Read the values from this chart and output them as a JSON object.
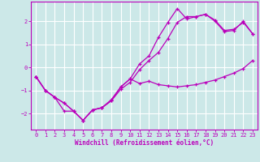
{
  "xlabel": "Windchill (Refroidissement éolien,°C)",
  "bg_color": "#cce8e8",
  "grid_color": "#ffffff",
  "line_color": "#bb00bb",
  "xlim": [
    -0.5,
    23.5
  ],
  "ylim": [
    -2.7,
    2.85
  ],
  "xticks": [
    0,
    1,
    2,
    3,
    4,
    5,
    6,
    7,
    8,
    9,
    10,
    11,
    12,
    13,
    14,
    15,
    16,
    17,
    18,
    19,
    20,
    21,
    22,
    23
  ],
  "yticks": [
    -2,
    -1,
    0,
    1,
    2
  ],
  "line1_x": [
    0,
    1,
    2,
    3,
    4,
    5,
    6,
    7,
    8,
    9,
    10,
    11,
    12,
    13,
    14,
    15,
    16,
    17,
    18,
    19,
    20,
    21,
    22,
    23
  ],
  "line1_y": [
    -0.4,
    -1.0,
    -1.3,
    -1.9,
    -1.9,
    -2.3,
    -1.85,
    -1.75,
    -1.45,
    -0.85,
    -0.5,
    0.15,
    0.5,
    1.3,
    1.95,
    2.55,
    2.1,
    2.2,
    2.3,
    2.0,
    1.55,
    1.6,
    2.0,
    1.45
  ],
  "line2_x": [
    0,
    1,
    2,
    3,
    4,
    5,
    6,
    7,
    8,
    9,
    10,
    11,
    12,
    13,
    14,
    15,
    16,
    17,
    18,
    19,
    20,
    21,
    22,
    23
  ],
  "line2_y": [
    -0.4,
    -1.0,
    -1.3,
    -1.55,
    -1.9,
    -2.3,
    -1.85,
    -1.75,
    -1.4,
    -0.85,
    -0.5,
    -0.7,
    -0.6,
    -0.75,
    -0.8,
    -0.85,
    -0.8,
    -0.75,
    -0.65,
    -0.55,
    -0.4,
    -0.25,
    -0.05,
    0.3
  ],
  "line3_x": [
    0,
    1,
    2,
    3,
    4,
    5,
    6,
    7,
    8,
    9,
    10,
    11,
    12,
    13,
    14,
    15,
    16,
    17,
    18,
    19,
    20,
    21,
    22,
    23
  ],
  "line3_y": [
    -0.4,
    -1.0,
    -1.3,
    -1.55,
    -1.9,
    -2.3,
    -1.85,
    -1.75,
    -1.45,
    -0.95,
    -0.65,
    -0.1,
    0.3,
    0.65,
    1.25,
    1.95,
    2.2,
    2.2,
    2.3,
    2.05,
    1.6,
    1.65,
    1.95,
    1.45
  ]
}
